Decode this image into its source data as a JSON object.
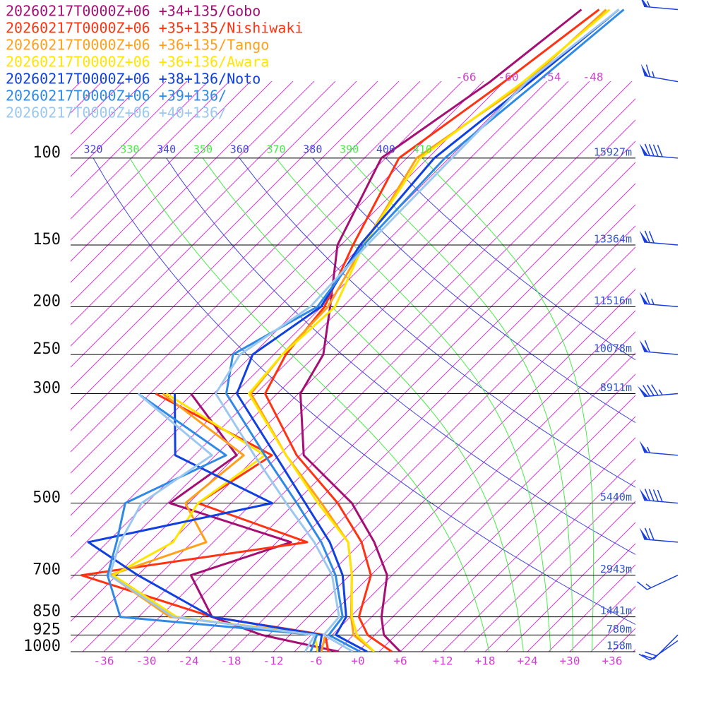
{
  "chart_data": {
    "type": "skewt",
    "pressure": [
      1000,
      925,
      850,
      700,
      600,
      500,
      400,
      300,
      250,
      200,
      150,
      100,
      70,
      50
    ],
    "series": [
      {
        "name": "20260217T0000Z+06 +34+135/Gobo",
        "color": "#a50f73",
        "temperature": [
          6.0,
          1.3,
          -1.6,
          -6.7,
          -13.2,
          -21.9,
          -35.5,
          -44.7,
          -47.0,
          -52.8,
          -60.5,
          -66.6,
          -62.0,
          -59.3
        ],
        "dewpoint": [
          -2.7,
          -16.0,
          -25.6,
          -34.5,
          -25.0,
          -47.7,
          -45.0,
          -60.2,
          null,
          null,
          null,
          null,
          null,
          null
        ]
      },
      {
        "name": "20260217T0000Z+06 +35+135/Nishiwaki",
        "color": "#ff3311",
        "temperature": [
          4.8,
          -1.0,
          -4.8,
          -9.0,
          -15.0,
          -23.9,
          -36.5,
          -49.7,
          -52.3,
          -53.6,
          -58.3,
          -64.1,
          -60.0,
          -56.8
        ],
        "dewpoint": [
          -4.2,
          -7.0,
          -25.6,
          -50.0,
          -22.7,
          -43.7,
          -40.0,
          -65.2,
          null,
          null,
          null,
          null,
          null,
          null
        ]
      },
      {
        "name": "20260217T0000Z+06 +36+135/Tango",
        "color": "#ff9f1a",
        "temperature": [
          2.3,
          -3.0,
          -5.9,
          -11.7,
          -16.9,
          -26.2,
          -38.0,
          -51.7,
          -52.8,
          -53.1,
          -56.8,
          -61.6,
          -56.8,
          -55.8
        ],
        "dewpoint": [
          -5.2,
          -7.0,
          -31.6,
          -46.0,
          -37.0,
          -45.5,
          -44.0,
          -64.2,
          null,
          null,
          null,
          null,
          null,
          null
        ]
      },
      {
        "name": "20260217T0000Z+06 +36+136/Awara",
        "color": "#ffe600",
        "temperature": [
          2.3,
          -2.5,
          -5.8,
          -11.7,
          -16.9,
          -26.7,
          -38.0,
          -52.0,
          -52.8,
          -52.1,
          -56.8,
          -61.1,
          -57.3,
          -55.3
        ],
        "dewpoint": [
          -5.7,
          -8.5,
          -30.6,
          -45.5,
          -41.7,
          -43.7,
          -41.0,
          -63.7,
          null,
          null,
          null,
          null,
          null,
          null
        ]
      },
      {
        "name": "20260217T0000Z+06 +38+136/Noto",
        "color": "#1040e0",
        "temperature": [
          1.3,
          -5.5,
          -6.6,
          -13.0,
          -19.5,
          -28.5,
          -39.5,
          -53.7,
          -57.0,
          -54.1,
          -57.3,
          -59.1,
          -56.3,
          -54.0
        ],
        "dewpoint": [
          -5.5,
          -7.5,
          -25.6,
          -42.0,
          -53.7,
          -33.2,
          -53.7,
          -62.5,
          null,
          null,
          null,
          null,
          null,
          null
        ]
      },
      {
        "name": "20260217T0000Z+06 +39+136/",
        "color": "#2f8ae6",
        "temperature": [
          0.3,
          -6.5,
          -7.1,
          -14.0,
          -20.7,
          -29.7,
          -41.0,
          -55.2,
          -59.8,
          -54.6,
          -56.8,
          -57.6,
          -55.3,
          -53.3
        ],
        "dewpoint": [
          -6.7,
          -8.2,
          -38.6,
          -46.3,
          -49.7,
          -54.0,
          -46.5,
          -67.7,
          null,
          null,
          null,
          null,
          null,
          null
        ]
      },
      {
        "name": "20260217T0000Z+06 +40+136/",
        "color": "#9cc8f0",
        "temperature": [
          -0.7,
          -7.2,
          -7.6,
          -14.5,
          -21.7,
          -31.2,
          -42.5,
          -56.7,
          -58.8,
          -55.6,
          -56.3,
          -56.6,
          -56.8,
          -54.0
        ],
        "dewpoint": [
          -7.5,
          -8.5,
          -31.1,
          -46.0,
          -49.2,
          -51.7,
          -48.5,
          -67.7,
          null,
          null,
          null,
          null,
          null,
          null
        ]
      }
    ],
    "isobars": [
      {
        "pressure": 100,
        "height": "15927m"
      },
      {
        "pressure": 150,
        "height": "13364m"
      },
      {
        "pressure": 200,
        "height": "11516m"
      },
      {
        "pressure": 250,
        "height": "10078m"
      },
      {
        "pressure": 300,
        "height": "8911m"
      },
      {
        "pressure": 500,
        "height": "5440m"
      },
      {
        "pressure": 700,
        "height": "2943m"
      },
      {
        "pressure": 850,
        "height": "1441m"
      },
      {
        "pressure": 925,
        "height": "780m"
      },
      {
        "pressure": 1000,
        "height": "158m"
      }
    ],
    "xticks": [
      -36,
      -30,
      -24,
      -18,
      -12,
      -6,
      {
        "value": 0,
        "label": "+0"
      },
      {
        "value": 6,
        "label": "+6"
      },
      {
        "value": 12,
        "label": "+12"
      },
      {
        "value": 18,
        "label": "+18"
      },
      {
        "value": 24,
        "label": "+24"
      },
      {
        "value": 30,
        "label": "+30"
      },
      {
        "value": 36,
        "label": "+36"
      }
    ],
    "upper_xticks": [
      -66,
      -60,
      -54,
      -48
    ],
    "theta_labels": [
      320,
      330,
      340,
      350,
      360,
      370,
      380,
      390,
      400,
      410
    ],
    "winds": [
      {
        "pressure": 50,
        "direction": 275,
        "speed": 55
      },
      {
        "pressure": 70,
        "direction": 280,
        "speed": 65
      },
      {
        "pressure": 100,
        "direction": 275,
        "speed": 90
      },
      {
        "pressure": 150,
        "direction": 275,
        "speed": 70
      },
      {
        "pressure": 200,
        "direction": 275,
        "speed": 65
      },
      {
        "pressure": 250,
        "direction": 275,
        "speed": 60
      },
      {
        "pressure": 300,
        "direction": 265,
        "speed": 85
      },
      {
        "pressure": 400,
        "direction": 275,
        "speed": 55
      },
      {
        "pressure": 500,
        "direction": 275,
        "speed": 90
      },
      {
        "pressure": 600,
        "direction": 275,
        "speed": 70
      },
      {
        "pressure": 700,
        "direction": 245,
        "speed": 15
      },
      {
        "pressure": 925,
        "direction": 225,
        "speed": 20
      },
      {
        "pressure": 950,
        "direction": 235,
        "speed": 10
      }
    ]
  }
}
